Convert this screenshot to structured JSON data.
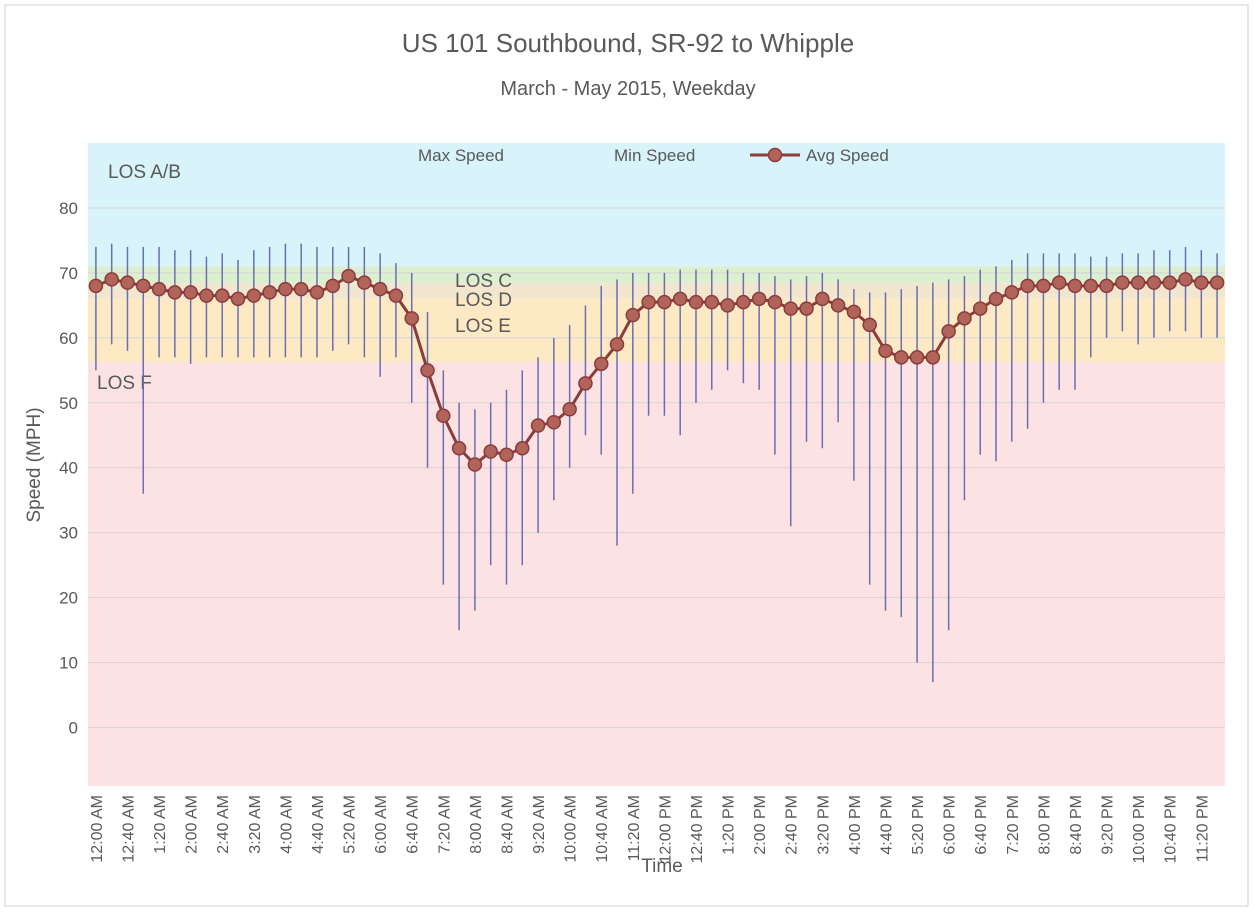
{
  "chart_data": {
    "type": "line",
    "title": "US 101 Southbound, SR-92 to Whipple",
    "subtitle": "March - May 2015, Weekday",
    "x_label": "Time",
    "y_label": "Speed (MPH)",
    "categories": [
      "12:00 AM",
      null,
      "12:40 AM",
      null,
      "1:20 AM",
      null,
      "2:00 AM",
      null,
      "2:40 AM",
      null,
      "3:20 AM",
      null,
      "4:00 AM",
      null,
      "4:40 AM",
      null,
      "5:20 AM",
      null,
      "6:00 AM",
      null,
      "6:40 AM",
      null,
      "7:20 AM",
      null,
      "8:00 AM",
      null,
      "8:40 AM",
      null,
      "9:20 AM",
      null,
      "10:00 AM",
      null,
      "10:40 AM",
      null,
      "11:20 AM",
      null,
      "12:00 PM",
      null,
      "12:40 PM",
      null,
      "1:20 PM",
      null,
      "2:00 PM",
      null,
      "2:40 PM",
      null,
      "3:20 PM",
      null,
      "4:00 PM",
      null,
      "4:40 PM",
      null,
      "5:20 PM",
      null,
      "6:00 PM",
      null,
      "6:40 PM",
      null,
      "7:20 PM",
      null,
      "8:00 PM",
      null,
      "8:40 PM",
      null,
      "9:20 PM",
      null,
      "10:00 PM",
      null,
      "10:40 PM",
      null,
      "11:20 PM",
      null
    ],
    "series": [
      {
        "name": "Max Speed",
        "color": "#6b6fb0",
        "values": [
          74,
          74.5,
          74,
          74,
          74,
          73.5,
          73.5,
          72.5,
          73,
          72,
          73.5,
          74,
          74.5,
          74.5,
          74,
          74,
          74,
          74,
          73,
          71.5,
          70,
          64,
          55,
          50,
          49,
          50,
          52,
          55,
          57,
          60,
          62,
          65,
          68,
          69,
          70,
          70,
          70,
          70.5,
          70.5,
          70.5,
          70.5,
          70,
          70,
          69.5,
          69,
          69.5,
          70,
          69,
          67.5,
          67,
          67,
          67.5,
          68,
          68.5,
          69,
          69.5,
          70.5,
          71,
          72,
          73,
          73,
          73,
          73,
          72.5,
          72.5,
          73,
          73,
          73.5,
          73.5,
          74,
          73.5,
          73
        ]
      },
      {
        "name": "Min Speed",
        "color": "#6b6fb0",
        "values": [
          55,
          59,
          58,
          36,
          57,
          57,
          56,
          57,
          57,
          57,
          57,
          57,
          57,
          57,
          57,
          58,
          59,
          57,
          54,
          57,
          50,
          40,
          22,
          15,
          18,
          25,
          22,
          25,
          30,
          35,
          40,
          45,
          42,
          28,
          36,
          48,
          48,
          45,
          50,
          52,
          55,
          53,
          52,
          42,
          31,
          44,
          43,
          47,
          38,
          22,
          18,
          17,
          10,
          7,
          15,
          35,
          42,
          41,
          44,
          46,
          50,
          52,
          52,
          57,
          60,
          61,
          59,
          60,
          61,
          61,
          60,
          60
        ]
      },
      {
        "name": "Avg Speed",
        "color": "#8b3b3b",
        "marker_color": "#b0645a",
        "values": [
          68,
          69,
          68.5,
          68,
          67.5,
          67,
          67,
          66.5,
          66.5,
          66,
          66.5,
          67,
          67.5,
          67.5,
          67,
          68,
          69.5,
          68.5,
          67.5,
          66.5,
          63,
          55,
          48,
          43,
          40.5,
          42.5,
          42,
          43,
          46.5,
          47,
          49,
          53,
          56,
          59,
          63.5,
          65.5,
          65.5,
          66,
          65.5,
          65.5,
          65,
          65.5,
          66,
          65.5,
          64.5,
          64.5,
          66,
          65,
          64,
          62,
          58,
          57,
          57,
          57,
          61,
          63,
          64.5,
          66,
          67,
          68,
          68,
          68.5,
          68,
          68,
          68,
          68.5,
          68.5,
          68.5,
          68.5,
          69,
          68.5,
          68.5
        ]
      }
    ],
    "bands": [
      {
        "label": "LOS A/B",
        "from": 71,
        "to": 90,
        "color": "#d9f3fb"
      },
      {
        "label": "LOS C",
        "from": 68.4,
        "to": 71,
        "color": "#dcefd0"
      },
      {
        "label": "LOS D",
        "from": 66,
        "to": 68.4,
        "color": "#f3e6cf"
      },
      {
        "label": "LOS E",
        "from": 56.3,
        "to": 66,
        "color": "#fde9c4"
      },
      {
        "label": "LOS F",
        "from": -9,
        "to": 56.3,
        "color": "#fde2e3"
      }
    ],
    "ylim": [
      -9,
      90
    ],
    "yticks": [
      0,
      10,
      20,
      30,
      40,
      50,
      60,
      70,
      80
    ],
    "grid": true
  }
}
